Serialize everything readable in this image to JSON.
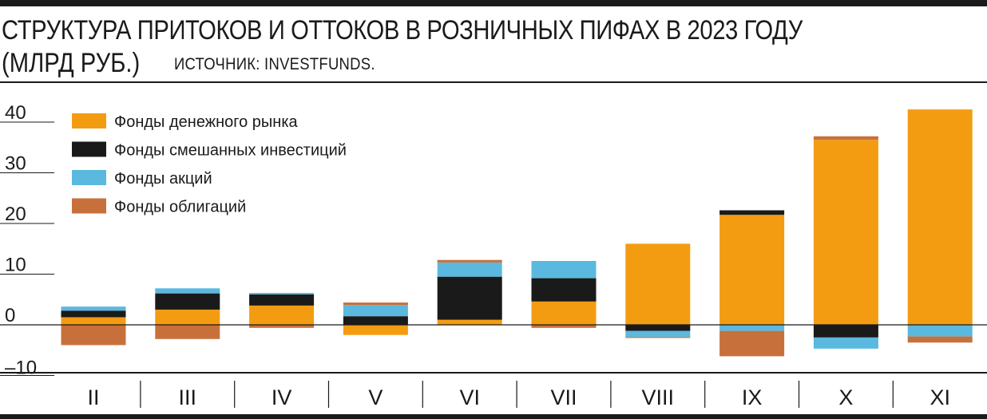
{
  "title_line1": "СТРУКТУРА ПРИТОКОВ И ОТТОКОВ В РОЗНИЧНЫХ ПИФАХ В 2023 ГОДУ",
  "title_line2": "(МЛРД РУБ.)",
  "source": "ИСТОЧНИК: INVESTFUNDS.",
  "chart_data": {
    "type": "bar",
    "stacked": true,
    "categories": [
      "II",
      "III",
      "IV",
      "V",
      "VI",
      "VII",
      "VIII",
      "IX",
      "X",
      "XI"
    ],
    "ylim": [
      -10,
      45
    ],
    "yticks": [
      -10,
      0,
      10,
      20,
      30,
      40
    ],
    "ytick_labels": [
      "–10",
      "0",
      "10",
      "20",
      "30",
      "40"
    ],
    "legend_position": "top-left",
    "series": [
      {
        "name": "Фонды денежного рынка",
        "color": "#f39c12",
        "values": [
          1.5,
          3.0,
          3.8,
          -2.0,
          1.0,
          4.6,
          16.0,
          21.7,
          36.5,
          42.5
        ]
      },
      {
        "name": "Фонды смешанных инвестиций",
        "color": "#1a1a1a",
        "values": [
          1.3,
          3.2,
          2.2,
          1.7,
          8.5,
          4.6,
          -1.2,
          0.9,
          -2.5,
          0.0
        ]
      },
      {
        "name": "Фонды акций",
        "color": "#5bb8de",
        "values": [
          0.8,
          1.0,
          0.3,
          2.2,
          2.8,
          3.4,
          -1.2,
          -1.2,
          -2.2,
          -2.3
        ]
      },
      {
        "name": "Фонды облигаций",
        "color": "#c8703b",
        "values": [
          -4.0,
          -2.8,
          -0.6,
          0.5,
          0.5,
          -0.6,
          -0.2,
          -5.0,
          0.7,
          -1.2
        ]
      }
    ]
  }
}
